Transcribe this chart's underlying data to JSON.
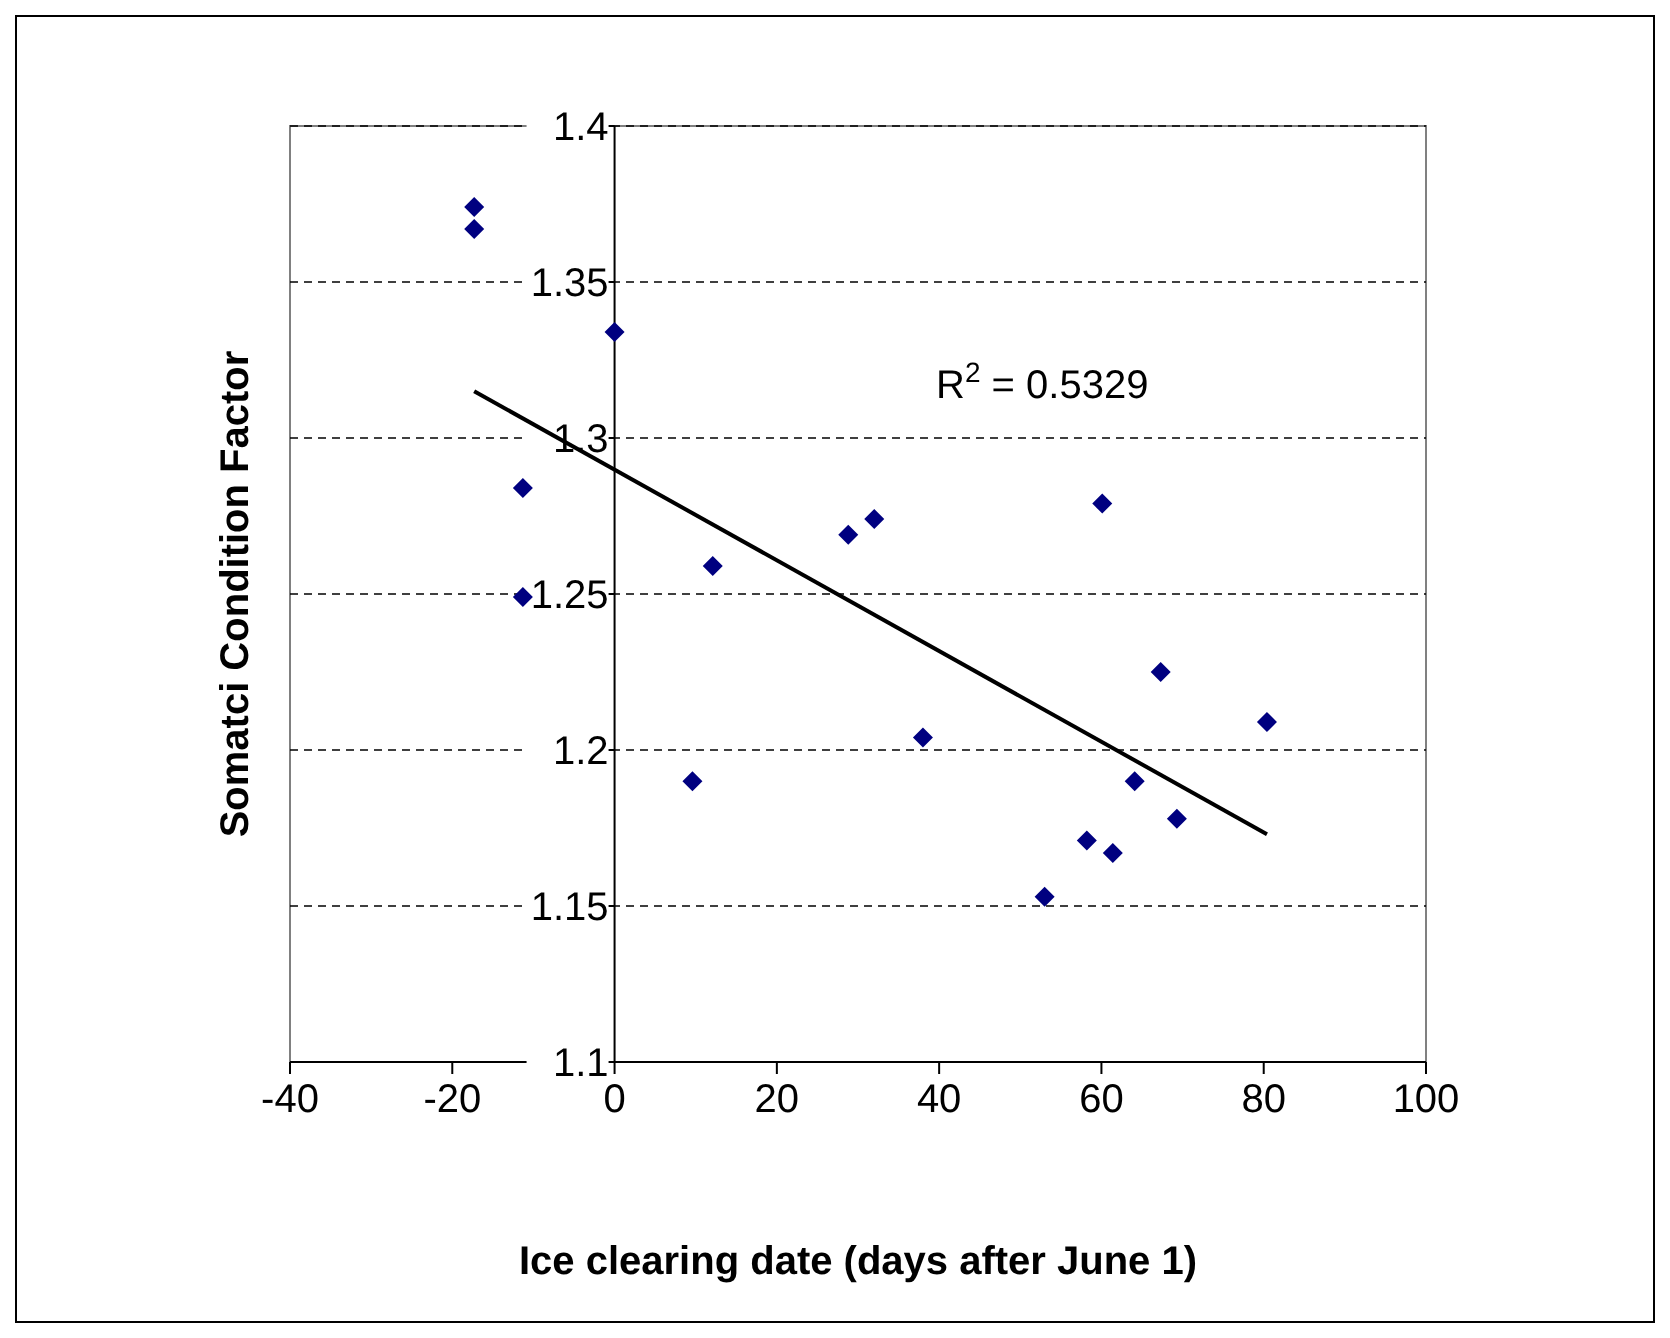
{
  "chart_data": {
    "type": "scatter",
    "xlabel": "Ice clearing date (days after June 1)",
    "ylabel": "Somatci Condition Factor",
    "xlim": [
      -40,
      100
    ],
    "xticks": [
      -40,
      -20,
      0,
      20,
      40,
      60,
      80,
      100
    ],
    "ylim": [
      1.1,
      1.4
    ],
    "yticks": [
      1.1,
      1.15,
      1.2,
      1.25,
      1.3,
      1.35,
      1.4
    ],
    "grid": "y",
    "marker": "diamond",
    "annotations": [
      "R$^{2}$ = 0.5329"
    ],
    "series": [
      {
        "color": "#000080",
        "x": [
          -17.3,
          -17.3,
          0,
          -11.3,
          -11.3,
          12.1,
          9.6,
          28.8,
          32,
          38,
          53,
          60.1,
          58.2,
          61.4,
          64.1,
          67.3,
          69.3,
          80.4
        ],
        "values": [
          1.374,
          1.367,
          1.334,
          1.284,
          1.249,
          1.259,
          1.19,
          1.269,
          1.274,
          1.204,
          1.153,
          1.279,
          1.171,
          1.167,
          1.19,
          1.225,
          1.178,
          1.209
        ]
      },
      {
        "type": "line",
        "color": "#000000",
        "marker": "none",
        "x": [
          -17.3,
          80.4
        ],
        "values": [
          1.315,
          1.173
        ]
      }
    ]
  }
}
